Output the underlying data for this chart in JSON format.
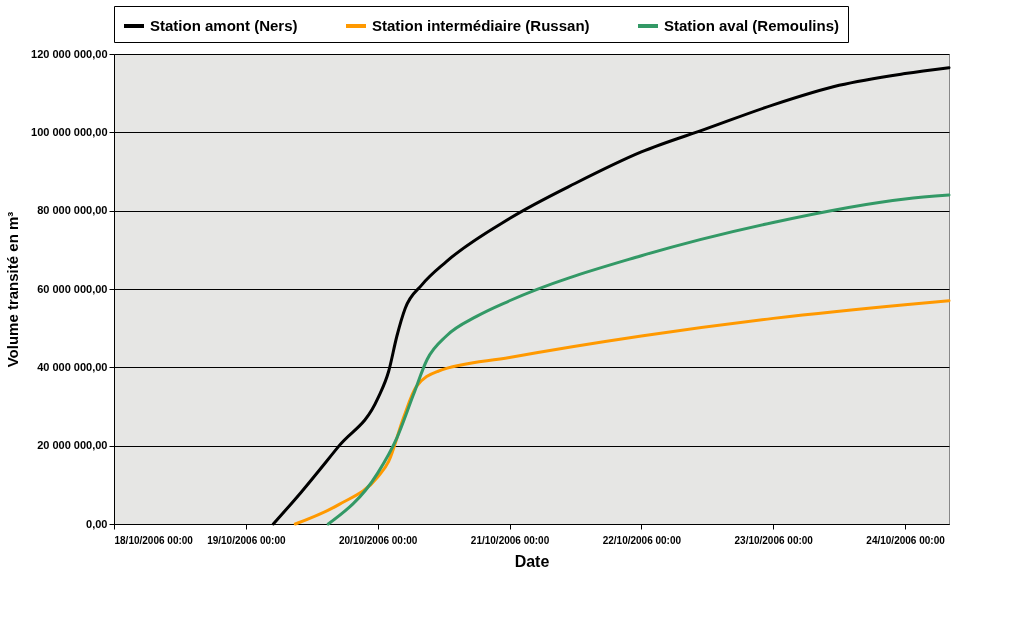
{
  "chart_data": {
    "type": "line",
    "xlabel": "Date",
    "ylabel": "Volume transité en m³",
    "xlim": [
      "2006-10-18T00:00",
      "2006-10-24T08:00"
    ],
    "xticks": [
      {
        "value": "2006-10-18T00:00",
        "label": "18/10/2006 00:00"
      },
      {
        "value": "2006-10-19T00:00",
        "label": "19/10/2006 00:00"
      },
      {
        "value": "2006-10-20T00:00",
        "label": "20/10/2006 00:00"
      },
      {
        "value": "2006-10-21T00:00",
        "label": "21/10/2006 00:00"
      },
      {
        "value": "2006-10-22T00:00",
        "label": "22/10/2006 00:00"
      },
      {
        "value": "2006-10-23T00:00",
        "label": "23/10/2006 00:00"
      },
      {
        "value": "2006-10-24T00:00",
        "label": "24/10/2006 00:00"
      }
    ],
    "ylim": [
      0,
      120000000
    ],
    "yticks": [
      {
        "value": 0,
        "label": "0,00"
      },
      {
        "value": 20000000,
        "label": "20 000 000,00"
      },
      {
        "value": 40000000,
        "label": "40 000 000,00"
      },
      {
        "value": 60000000,
        "label": "60 000 000,00"
      },
      {
        "value": 80000000,
        "label": "80 000 000,00"
      },
      {
        "value": 100000000,
        "label": "100 000 000,00"
      },
      {
        "value": 120000000,
        "label": "120 000 000,00"
      }
    ],
    "grid": "y",
    "legend": "top",
    "marker": "none",
    "line_style": "solid",
    "series": [
      {
        "name": "Station amont (Ners)",
        "color": "#000000",
        "x": [
          "2006-10-19T05:00",
          "2006-10-19T10:00",
          "2006-10-19T17:00",
          "2006-10-20T00:00",
          "2006-10-20T02:00",
          "2006-10-20T03:30",
          "2006-10-20T05:00",
          "2006-10-20T08:00",
          "2006-10-20T12:30",
          "2006-10-21T00:00",
          "2006-10-21T12:00",
          "2006-10-22T00:00",
          "2006-10-22T12:00",
          "2006-10-23T00:00",
          "2006-10-23T12:00",
          "2006-10-24T00:00",
          "2006-10-24T08:00"
        ],
        "values": [
          0,
          8000000,
          20000000,
          32000000,
          39000000,
          48000000,
          55000000,
          61000000,
          67000000,
          78000000,
          87000000,
          95000000,
          101000000,
          107000000,
          112000000,
          115000000,
          116500000
        ]
      },
      {
        "name": "Station intermédiaire (Russan)",
        "color": "#ff9900",
        "x": [
          "2006-10-19T09:00",
          "2006-10-19T17:00",
          "2006-10-20T00:00",
          "2006-10-20T02:00",
          "2006-10-20T04:40",
          "2006-10-20T07:00",
          "2006-10-20T11:00",
          "2006-10-21T00:00",
          "2006-10-22T00:00",
          "2006-10-23T00:00",
          "2006-10-24T00:00",
          "2006-10-24T08:00"
        ],
        "values": [
          0,
          5000000,
          12000000,
          16000000,
          27000000,
          35000000,
          39000000,
          42500000,
          48000000,
          52500000,
          56000000,
          57000000
        ]
      },
      {
        "name": "Station aval (Remoulins)",
        "color": "#339966",
        "x": [
          "2006-10-19T15:00",
          "2006-10-20T00:00",
          "2006-10-20T03:30",
          "2006-10-20T06:30",
          "2006-10-20T09:00",
          "2006-10-20T12:30",
          "2006-10-20T18:00",
          "2006-10-21T00:00",
          "2006-10-22T00:00",
          "2006-10-23T00:00",
          "2006-10-24T00:00",
          "2006-10-24T08:00"
        ],
        "values": [
          0,
          13000000,
          22000000,
          33000000,
          42000000,
          48000000,
          53000000,
          57000000,
          68500000,
          77000000,
          83000000,
          84000000
        ]
      }
    ]
  }
}
